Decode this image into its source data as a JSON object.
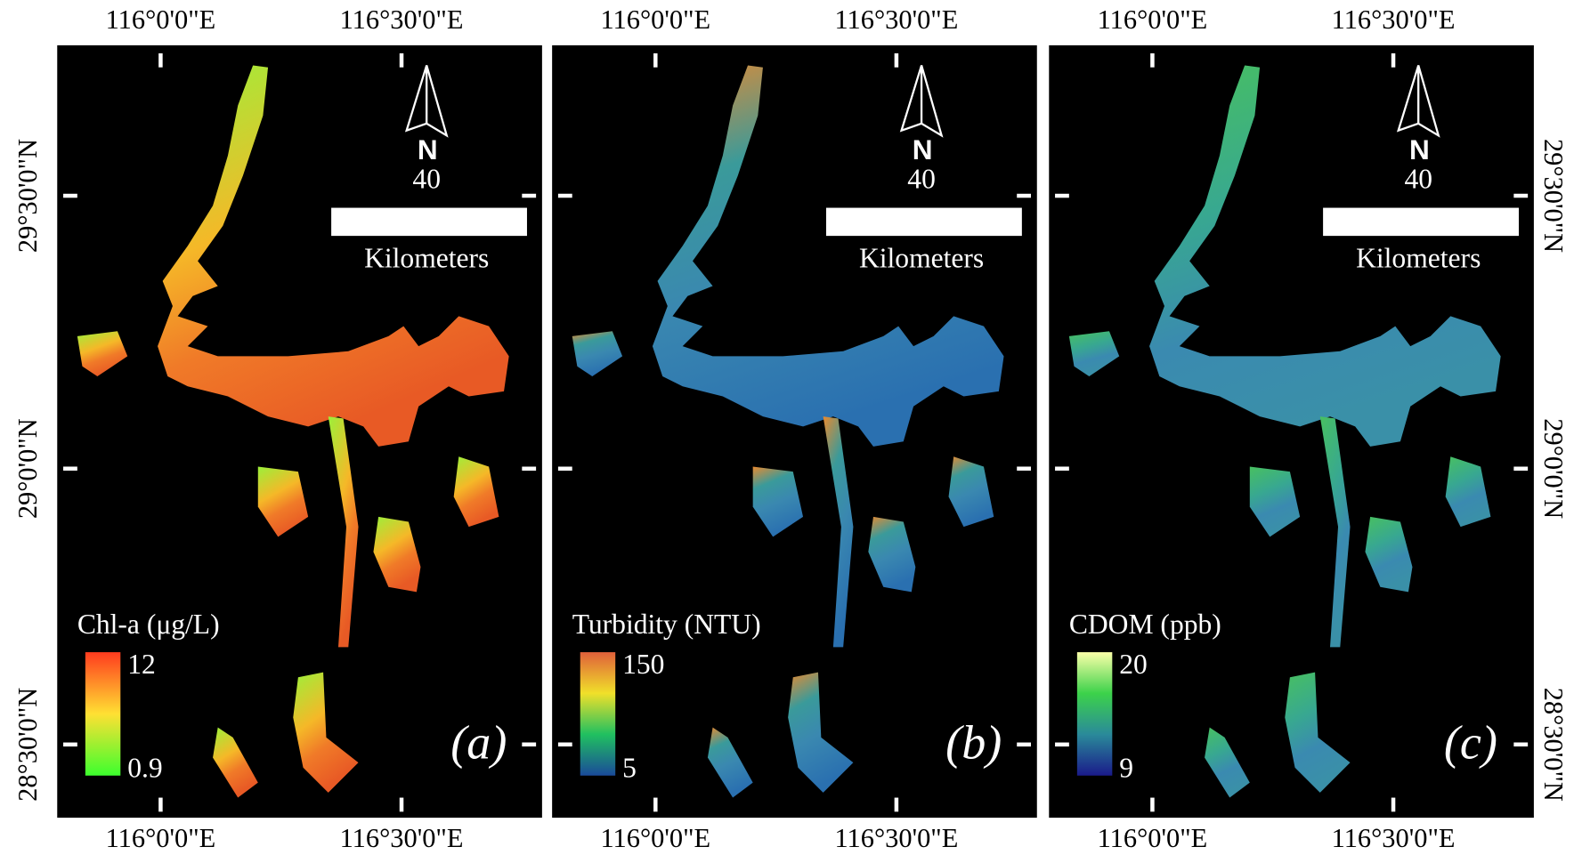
{
  "panels": [
    {
      "top_axis": [
        "116°0'0\"E",
        "116°30'0\"E"
      ],
      "bottom_axis": [
        "116°0'0\"E",
        "116°30'0\"E"
      ],
      "left_axis": [
        "29°30'0\"N",
        "29°0'0\"N",
        "28°30'0\"N"
      ],
      "north": "N",
      "scale_value": "40",
      "scale_unit": "Kilometers",
      "legend": {
        "title": "Chl-a (μg/L)",
        "max": "12",
        "min": "0.9",
        "colors": [
          "#ff3b1e",
          "#ffe033",
          "#3cff2e"
        ]
      },
      "label": "(a)"
    },
    {
      "top_axis": [
        "116°0'0\"E",
        "116°30'0\"E"
      ],
      "bottom_axis": [
        "116°0'0\"E",
        "116°30'0\"E"
      ],
      "north": "N",
      "scale_value": "40",
      "scale_unit": "Kilometers",
      "legend": {
        "title": "Turbidity (NTU)",
        "max": "150",
        "min": "5",
        "colors": [
          "#e0603a",
          "#f0e02a",
          "#20c060",
          "#1a4a9a"
        ]
      },
      "label": "(b)"
    },
    {
      "top_axis": [
        "116°0'0\"E",
        "116°30'0\"E"
      ],
      "bottom_axis": [
        "116°0'0\"E",
        "116°30'0\"E"
      ],
      "right_axis": [
        "29°30'0\"N",
        "29°0'0\"N",
        "28°30'0\"N"
      ],
      "north": "N",
      "scale_value": "40",
      "scale_unit": "Kilometers",
      "legend": {
        "title": "CDOM (ppb)",
        "max": "20",
        "min": "9",
        "colors": [
          "#fbffa8",
          "#3cd24a",
          "#2a8a9a",
          "#1a1a8a"
        ]
      },
      "label": "(c)"
    }
  ]
}
